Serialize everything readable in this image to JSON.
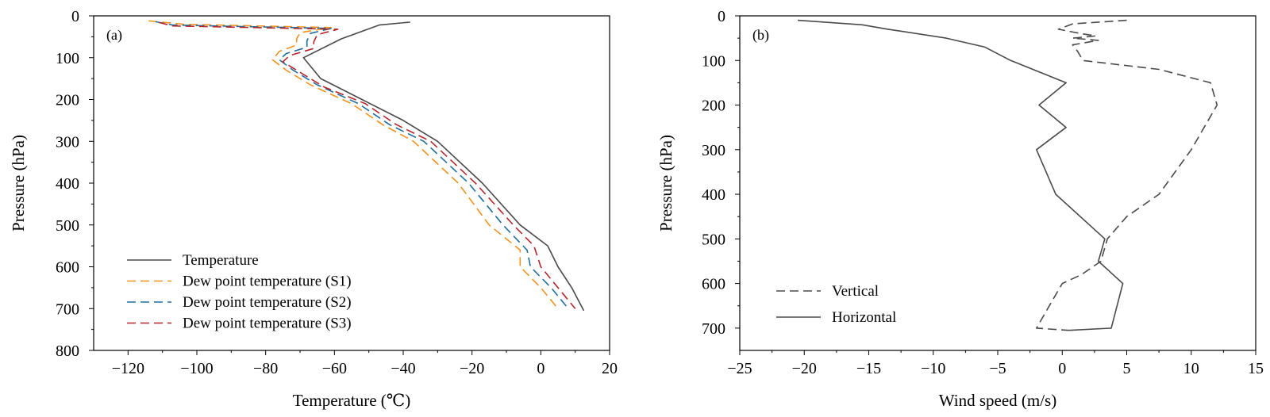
{
  "chart_data": [
    {
      "type": "line",
      "panel_label": "(a)",
      "xlabel": "Temperature (℃)",
      "ylabel": "Pressure (hPa)",
      "xlim": [
        -130,
        20
      ],
      "ylim": [
        800,
        0
      ],
      "y_inverted": true,
      "xticks": [
        -120,
        -100,
        -80,
        -60,
        -40,
        -20,
        0,
        20
      ],
      "yticks": [
        0,
        100,
        200,
        300,
        400,
        500,
        600,
        700,
        800
      ],
      "legend_position": "bottom-left",
      "grid": false,
      "series": [
        {
          "name": "Temperature",
          "color": "#4a4a4a",
          "dash": "solid",
          "points": [
            [
              -38,
              15
            ],
            [
              -47,
              22
            ],
            [
              -58,
              55
            ],
            [
              -69,
              100
            ],
            [
              -64,
              150
            ],
            [
              -52,
              200
            ],
            [
              -40,
              250
            ],
            [
              -30,
              300
            ],
            [
              -17,
              400
            ],
            [
              -6,
              500
            ],
            [
              2,
              550
            ],
            [
              5,
              600
            ],
            [
              9,
              650
            ],
            [
              12.5,
              705
            ]
          ]
        },
        {
          "name": "Dew point temperature (S1)",
          "color": "#f0921f",
          "dash": "dashed",
          "points": [
            [
              -114,
              12
            ],
            [
              -104,
              20
            ],
            [
              -61,
              28
            ],
            [
              -70,
              40
            ],
            [
              -71,
              55
            ],
            [
              -71,
              70
            ],
            [
              -76,
              85
            ],
            [
              -78,
              105
            ],
            [
              -74,
              130
            ],
            [
              -67,
              165
            ],
            [
              -55,
              210
            ],
            [
              -46,
              260
            ],
            [
              -37,
              300
            ],
            [
              -24,
              400
            ],
            [
              -15,
              500
            ],
            [
              -6,
              560
            ],
            [
              -6,
              600
            ],
            [
              0,
              650
            ],
            [
              5,
              700
            ]
          ]
        },
        {
          "name": "Dew point temperature (S2)",
          "color": "#1f6d9e",
          "dash": "dashed",
          "points": [
            [
              -112,
              14
            ],
            [
              -107,
              22
            ],
            [
              -61,
              30
            ],
            [
              -67,
              42
            ],
            [
              -68,
              60
            ],
            [
              -68,
              75
            ],
            [
              -74,
              90
            ],
            [
              -76,
              105
            ],
            [
              -72,
              130
            ],
            [
              -65,
              165
            ],
            [
              -53,
              210
            ],
            [
              -44,
              260
            ],
            [
              -34,
              300
            ],
            [
              -21,
              400
            ],
            [
              -11,
              500
            ],
            [
              -4,
              560
            ],
            [
              -3,
              600
            ],
            [
              3,
              650
            ],
            [
              8,
              700
            ]
          ]
        },
        {
          "name": "Dew point temperature (S3)",
          "color": "#b5262b",
          "dash": "dashed",
          "points": [
            [
              -111,
              16
            ],
            [
              -107,
              24
            ],
            [
              -59,
              32
            ],
            [
              -65,
              45
            ],
            [
              -66,
              62
            ],
            [
              -66,
              78
            ],
            [
              -73,
              95
            ],
            [
              -75,
              110
            ],
            [
              -70,
              135
            ],
            [
              -63,
              170
            ],
            [
              -51,
              210
            ],
            [
              -42,
              260
            ],
            [
              -32,
              300
            ],
            [
              -19,
              400
            ],
            [
              -8,
              500
            ],
            [
              -2,
              550
            ],
            [
              0,
              600
            ],
            [
              5,
              650
            ],
            [
              10,
              700
            ]
          ]
        }
      ]
    },
    {
      "type": "line",
      "panel_label": "(b)",
      "xlabel": "Wind speed (m/s)",
      "ylabel": "Pressure (hPa)",
      "xlim": [
        -25,
        15
      ],
      "ylim": [
        750,
        0
      ],
      "y_inverted": true,
      "xticks": [
        -25,
        -20,
        -15,
        -10,
        -5,
        0,
        5,
        10,
        15
      ],
      "yticks": [
        0,
        100,
        200,
        300,
        400,
        500,
        600,
        700
      ],
      "legend_position": "bottom-left",
      "grid": false,
      "series": [
        {
          "name": "Vertical",
          "color": "#4a4a4a",
          "dash": "dashed",
          "points": [
            [
              5,
              10
            ],
            [
              0.8,
              18
            ],
            [
              -0.3,
              30
            ],
            [
              1.5,
              40
            ],
            [
              2.6,
              45
            ],
            [
              0.8,
              50
            ],
            [
              2.8,
              55
            ],
            [
              0.8,
              65
            ],
            [
              1.2,
              80
            ],
            [
              1.6,
              100
            ],
            [
              7.5,
              120
            ],
            [
              11.5,
              150
            ],
            [
              12,
              200
            ],
            [
              11,
              250
            ],
            [
              10,
              300
            ],
            [
              7.5,
              400
            ],
            [
              5,
              450
            ],
            [
              3.5,
              500
            ],
            [
              3,
              550
            ],
            [
              1.5,
              580
            ],
            [
              0,
              600
            ],
            [
              -1,
              650
            ],
            [
              -2,
              700
            ],
            [
              0.5,
              705
            ]
          ]
        },
        {
          "name": "Horizontal",
          "color": "#4a4a4a",
          "dash": "solid",
          "points": [
            [
              -20.5,
              10
            ],
            [
              -15.5,
              20
            ],
            [
              -13.5,
              30
            ],
            [
              -9,
              50
            ],
            [
              -6,
              70
            ],
            [
              -4,
              100
            ],
            [
              0.3,
              150
            ],
            [
              -1.8,
              200
            ],
            [
              0.3,
              250
            ],
            [
              -2,
              300
            ],
            [
              -0.5,
              400
            ],
            [
              3.3,
              500
            ],
            [
              2.8,
              550
            ],
            [
              4.7,
              600
            ],
            [
              3.8,
              700
            ],
            [
              0.5,
              705
            ]
          ]
        }
      ]
    }
  ]
}
